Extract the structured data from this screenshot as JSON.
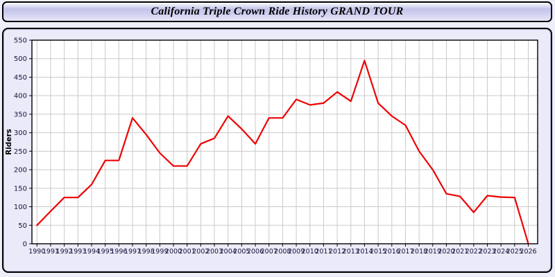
{
  "header": {
    "title": "California Triple Crown Ride History GRAND TOUR"
  },
  "chart_data": {
    "type": "line",
    "title": "California Triple Crown Ride History GRAND TOUR",
    "xlabel": "",
    "ylabel": "Riders",
    "ylim": [
      0,
      550
    ],
    "ytick_step": 50,
    "grid": true,
    "legend_position": "none",
    "x": [
      1990,
      1991,
      1992,
      1993,
      1994,
      1995,
      1996,
      1997,
      1998,
      1999,
      2000,
      2001,
      2002,
      2003,
      2004,
      2005,
      2006,
      2007,
      2008,
      2009,
      2010,
      2011,
      2012,
      2013,
      2014,
      2015,
      2016,
      2017,
      2018,
      2019,
      2020,
      2021,
      2022,
      2023,
      2024,
      2025,
      2026
    ],
    "series": [
      {
        "name": "Riders",
        "color": "#ee0000",
        "values": [
          50,
          88,
          125,
          125,
          160,
          225,
          225,
          340,
          295,
          245,
          210,
          210,
          270,
          285,
          345,
          310,
          270,
          340,
          340,
          390,
          375,
          380,
          410,
          385,
          495,
          380,
          345,
          320,
          250,
          200,
          135,
          128,
          85,
          130,
          126,
          125,
          0
        ]
      }
    ],
    "colors": {
      "plot_background": "#ffffff",
      "panel_background": "#eaeaf8",
      "grid_color": "#c9c9c9",
      "axis_color": "#000000",
      "tick_label_color": "#14143c",
      "line_color": "#ee0000"
    }
  }
}
